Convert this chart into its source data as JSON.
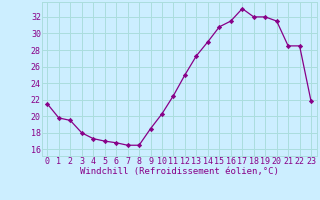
{
  "x": [
    0,
    1,
    2,
    3,
    4,
    5,
    6,
    7,
    8,
    9,
    10,
    11,
    12,
    13,
    14,
    15,
    16,
    17,
    18,
    19,
    20,
    21,
    22,
    23
  ],
  "y": [
    21.5,
    19.8,
    19.5,
    18.0,
    17.3,
    17.0,
    16.8,
    16.5,
    16.5,
    18.5,
    20.3,
    22.5,
    25.0,
    27.3,
    29.0,
    30.8,
    31.5,
    33.0,
    32.0,
    32.0,
    31.5,
    28.5,
    28.5,
    21.8
  ],
  "line_color": "#880088",
  "marker": "D",
  "marker_size": 2.2,
  "bg_color": "#cceeff",
  "grid_color": "#aadddd",
  "xlabel": "Windchill (Refroidissement éolien,°C)",
  "ylabel_ticks": [
    16,
    18,
    20,
    22,
    24,
    26,
    28,
    30,
    32
  ],
  "xlim": [
    -0.5,
    23.5
  ],
  "ylim": [
    15.2,
    33.8
  ],
  "tick_label_color": "#880088",
  "xlabel_color": "#880088",
  "xlabel_fontsize": 6.5,
  "tick_fontsize": 6.0
}
